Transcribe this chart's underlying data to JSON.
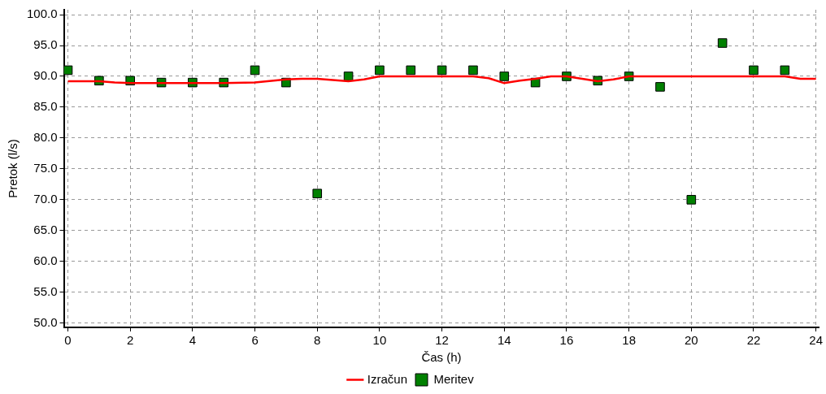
{
  "chart_data": {
    "type": "line",
    "xlabel": "Čas (h)",
    "ylabel": "Pretok (l/s)",
    "xlim": [
      -0.13,
      24.1
    ],
    "ylim": [
      49.3,
      100.8
    ],
    "xticks": [
      0,
      2,
      4,
      6,
      8,
      10,
      12,
      14,
      16,
      18,
      20,
      22,
      24
    ],
    "yticks": [
      {
        "value": 50,
        "label": "50.0"
      },
      {
        "value": 55,
        "label": "55.0"
      },
      {
        "value": 60,
        "label": "60.0"
      },
      {
        "value": 65,
        "label": "65.0"
      },
      {
        "value": 70,
        "label": "70.0"
      },
      {
        "value": 75,
        "label": "75.0"
      },
      {
        "value": 80,
        "label": "80.0"
      },
      {
        "value": 85,
        "label": "85.0"
      },
      {
        "value": 90,
        "label": "90.0"
      },
      {
        "value": 95,
        "label": "95.0"
      },
      {
        "value": 100,
        "label": "100.0"
      }
    ],
    "grid": true,
    "legend": "bottom",
    "series": [
      {
        "name": "Izračun",
        "type": "line",
        "color": "#ff0000",
        "marker": "none",
        "line_style": "solid",
        "x": [
          0,
          1,
          1.5,
          2,
          3,
          4,
          5,
          6,
          7,
          7.5,
          8,
          8.5,
          9,
          9.5,
          10,
          11,
          12,
          13,
          13.5,
          14,
          14.5,
          15,
          15.5,
          16,
          16.5,
          17,
          17.5,
          18,
          19,
          20,
          21,
          22,
          23,
          23.5,
          24
        ],
        "values": [
          89.2,
          89.2,
          89.0,
          88.9,
          88.9,
          88.9,
          88.9,
          89.0,
          89.5,
          89.6,
          89.6,
          89.4,
          89.2,
          89.5,
          90.0,
          90.0,
          90.0,
          90.0,
          89.7,
          88.9,
          89.3,
          89.6,
          90.0,
          90.0,
          89.6,
          89.2,
          89.5,
          90.0,
          90.0,
          90.0,
          90.0,
          90.0,
          90.0,
          89.6,
          89.6
        ]
      },
      {
        "name": "Meritev",
        "type": "scatter",
        "color": "#008000",
        "marker": "square",
        "x": [
          0,
          1,
          2,
          3,
          4,
          5,
          6,
          7,
          8,
          9,
          10,
          11,
          12,
          13,
          14,
          15,
          16,
          17,
          18,
          19,
          20,
          21,
          22,
          23
        ],
        "values": [
          91,
          89.3,
          89.3,
          89,
          89,
          89,
          91,
          89,
          71,
          90,
          91,
          91,
          91,
          91,
          90,
          89,
          90,
          89.3,
          90,
          88.3,
          70,
          95.4,
          91,
          91
        ]
      }
    ]
  }
}
